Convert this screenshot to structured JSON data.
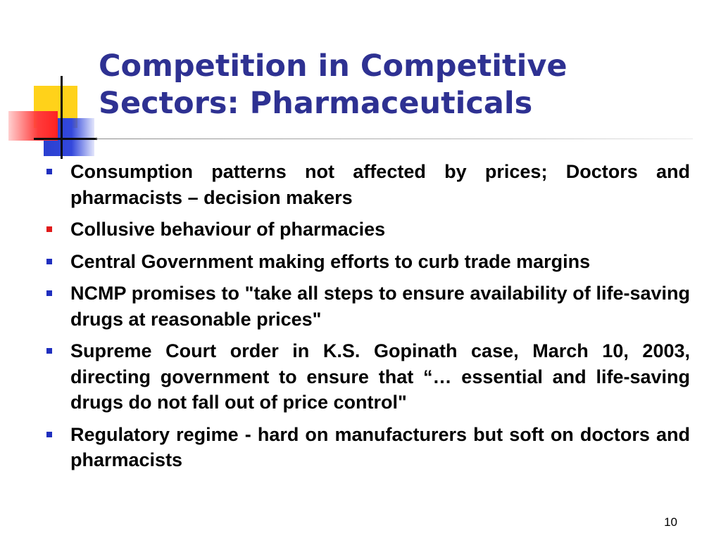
{
  "title": {
    "line1": "Competition in Competitive",
    "line2": "Sectors: Pharmaceuticals"
  },
  "colors": {
    "title": "#2e3192",
    "bullet_blue": "#1f2fbf",
    "bullet_red": "#e01b1b"
  },
  "bullets": [
    {
      "marker": "square-bullet",
      "color": "#1f2fbf",
      "text": "Consumption patterns not affected by prices; Doctors and pharmacists – decision makers"
    },
    {
      "marker": "square-bullet",
      "color": "#e01b1b",
      "text": "Collusive behaviour of pharmacies"
    },
    {
      "marker": "square-bullet",
      "color": "#1f2fbf",
      "text": "Central Government making efforts to curb trade margins"
    },
    {
      "marker": "square-bullet",
      "color": "#1f2fbf",
      "text": "NCMP promises to \"take all steps to ensure availability of life-saving drugs at reasonable prices\""
    },
    {
      "marker": "square-bullet",
      "color": "#1f2fbf",
      "text": "Supreme Court order in K.S. Gopinath case, March 10, 2003, directing government to ensure that “… essential and life-saving drugs do not fall out of price control\""
    },
    {
      "marker": "square-bullet",
      "color": "#1f2fbf",
      "text": "Regulatory regime - hard on manufacturers but soft on doctors and pharmacists"
    }
  ],
  "page_number": "10"
}
